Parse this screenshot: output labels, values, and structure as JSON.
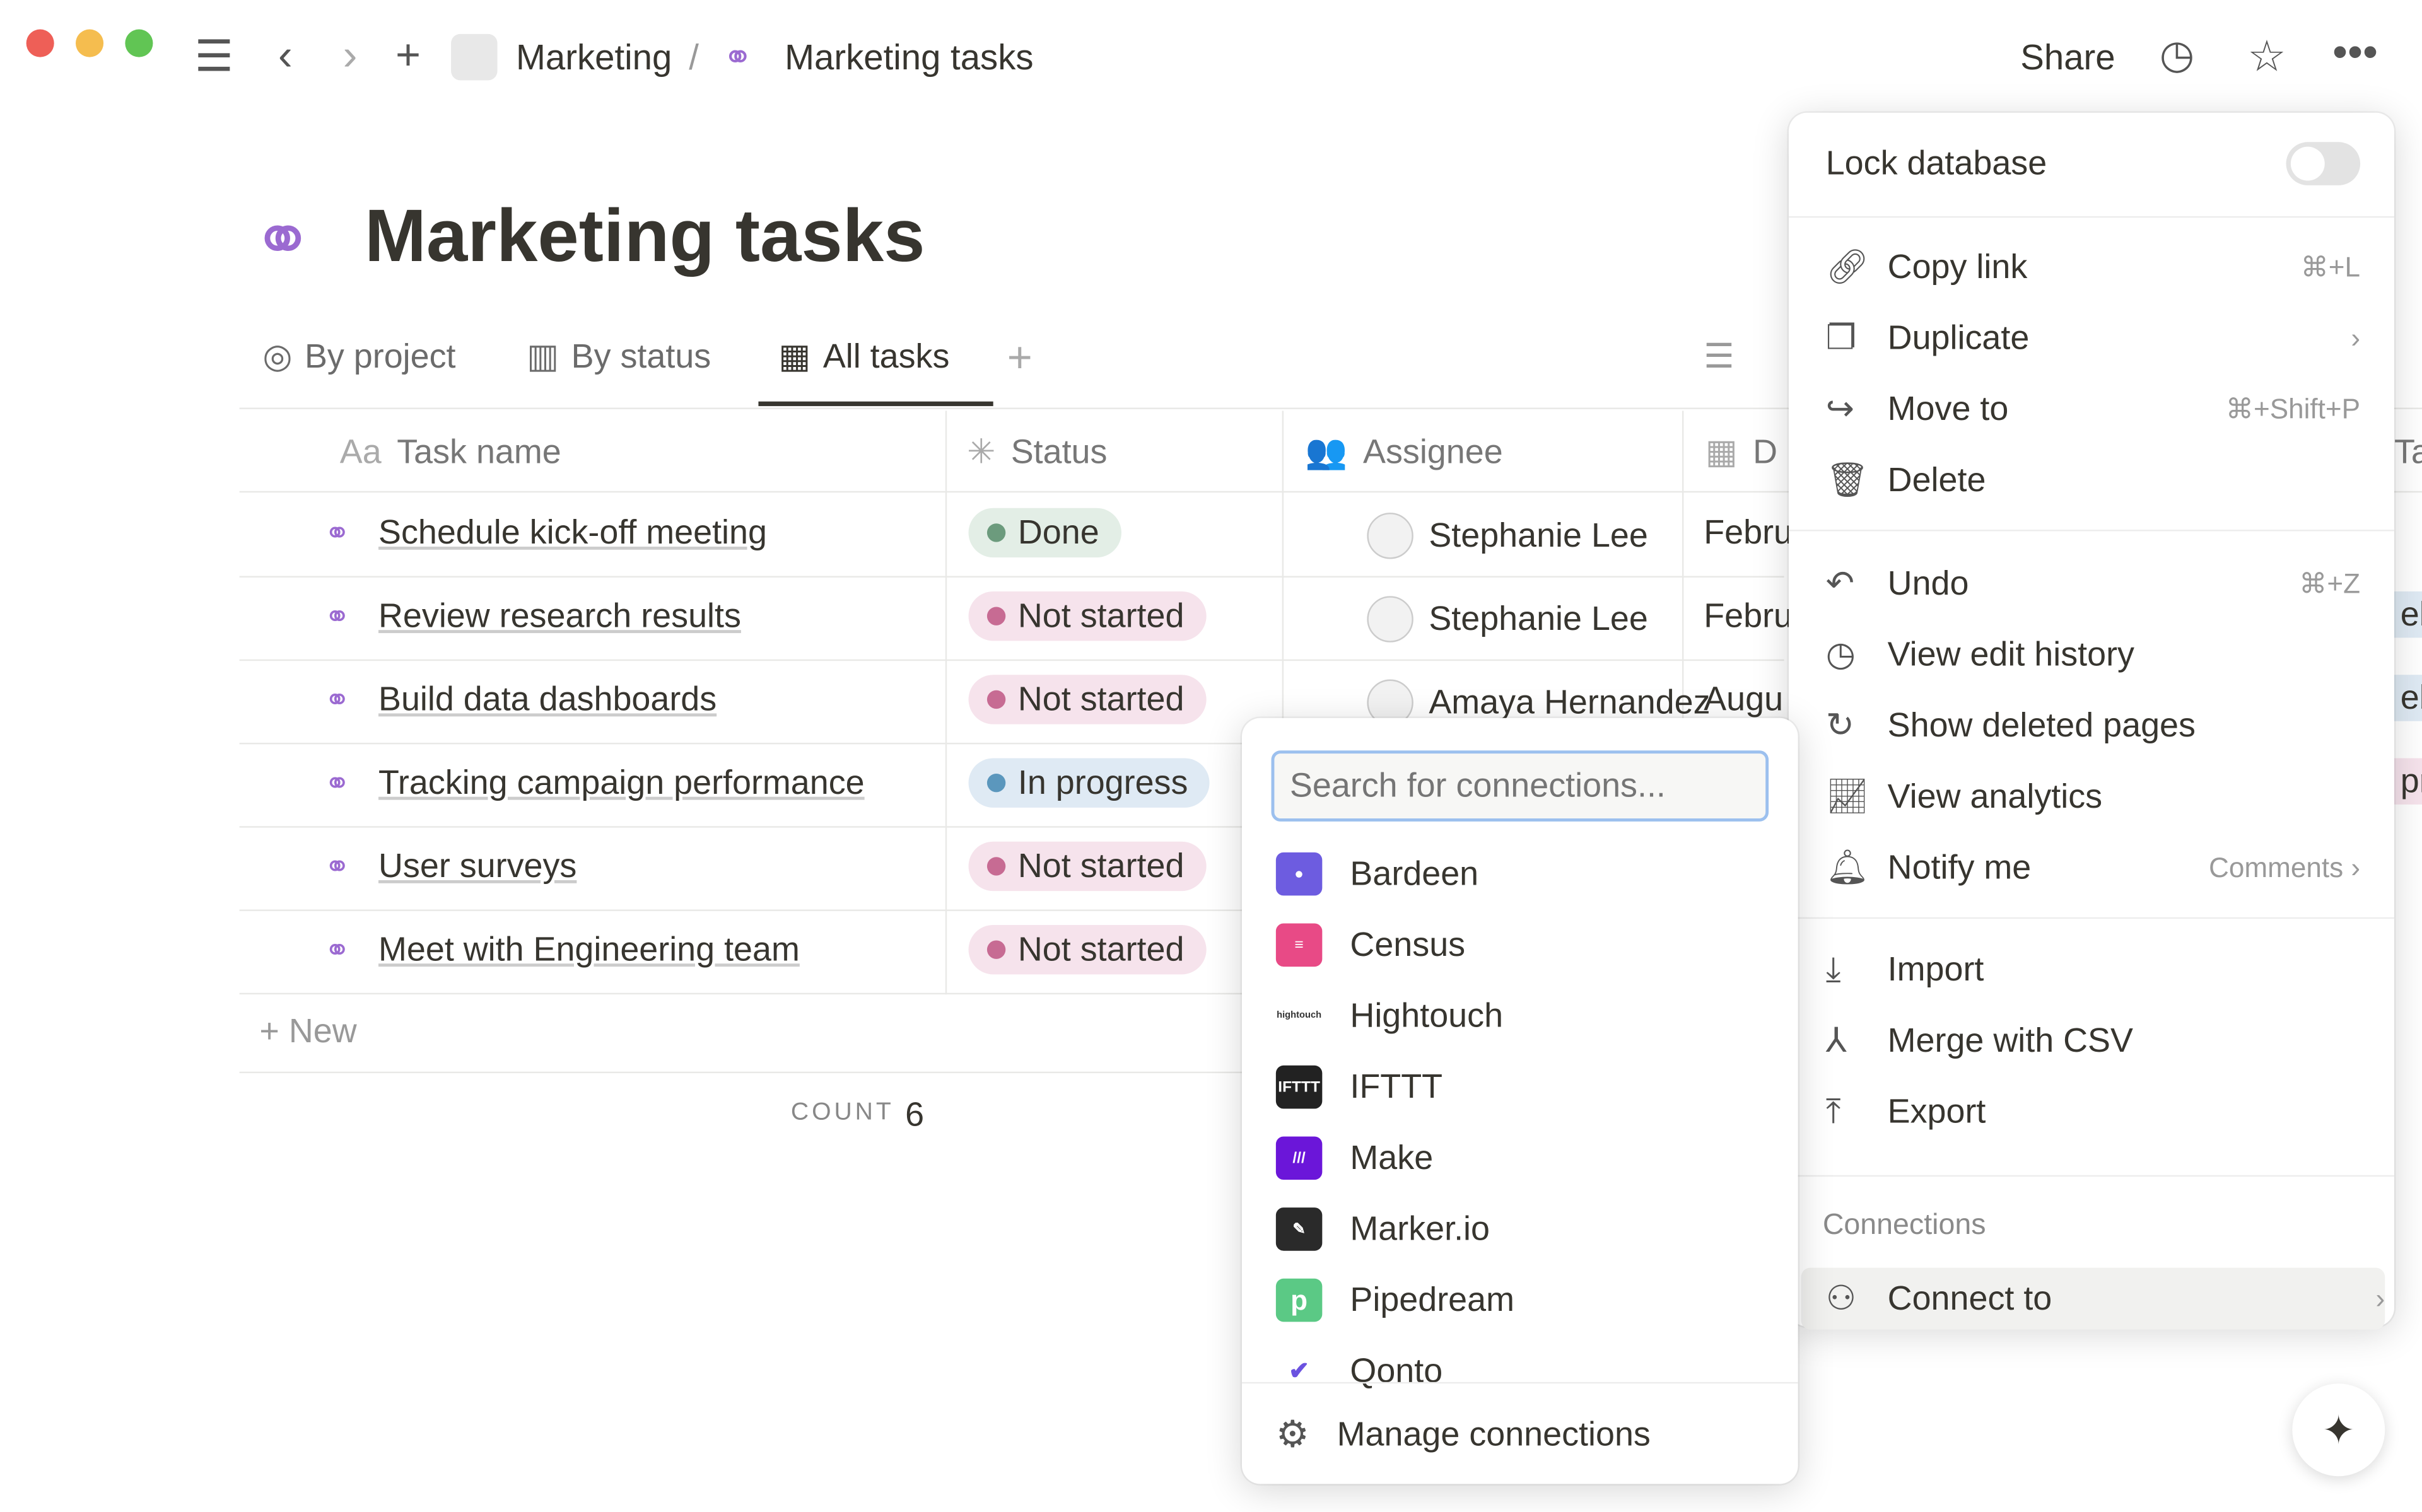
{
  "breadcrumb": {
    "parent": "Marketing",
    "separator": "/",
    "current": "Marketing tasks"
  },
  "topbar": {
    "share": "Share"
  },
  "page": {
    "title": "Marketing tasks"
  },
  "views": [
    {
      "label": "By project",
      "icon": "target-icon"
    },
    {
      "label": "By status",
      "icon": "board-icon"
    },
    {
      "label": "All tasks",
      "icon": "table-icon",
      "active": true
    }
  ],
  "columns": [
    {
      "label": "Task name",
      "icon": "Aa"
    },
    {
      "label": "Status"
    },
    {
      "label": "Assignee"
    },
    {
      "label": "D"
    },
    {
      "label": "Ta"
    }
  ],
  "rows": [
    {
      "name": "Schedule kick-off meeting",
      "status": "Done",
      "assignee": "Stephanie Lee",
      "date": "Febru",
      "tag": ""
    },
    {
      "name": "Review research results",
      "status": "Not started",
      "assignee": "Stephanie Lee",
      "date": "Febru",
      "tag": "eb"
    },
    {
      "name": "Build data dashboards",
      "status": "Not started",
      "assignee": "Amaya Hernandez",
      "date": "Augu",
      "tag": "eb"
    },
    {
      "name": "Tracking campaign performance",
      "status": "In progress",
      "assignee": "",
      "date": "",
      "tag": "pr"
    },
    {
      "name": "User surveys",
      "status": "Not started",
      "assignee": "",
      "date": "",
      "tag": ""
    },
    {
      "name": "Meet with Engineering team",
      "status": "Not started",
      "assignee": "",
      "date": "",
      "tag": ""
    }
  ],
  "table": {
    "new_label": "New",
    "count_label": "COUNT",
    "count": "6"
  },
  "status_colors": {
    "Done": "#6c9b7d",
    "Not started": "#c76b93",
    "In progress": "#5b97bd"
  },
  "menu": {
    "lock_label": "Lock database",
    "lock_on": false,
    "items": [
      {
        "label": "Copy link",
        "shortcut": "⌘+L",
        "icon": "link-icon"
      },
      {
        "label": "Duplicate",
        "shortcut": "›",
        "icon": "duplicate-icon"
      },
      {
        "label": "Move to",
        "shortcut": "⌘+Shift+P",
        "icon": "move-icon"
      },
      {
        "label": "Delete",
        "shortcut": "",
        "icon": "trash-icon"
      },
      {
        "label": "Undo",
        "shortcut": "⌘+Z",
        "icon": "undo-icon"
      },
      {
        "label": "View edit history",
        "shortcut": "",
        "icon": "clock-icon"
      },
      {
        "label": "Show deleted pages",
        "shortcut": "",
        "icon": "restore-icon"
      },
      {
        "label": "View analytics",
        "shortcut": "",
        "icon": "chart-icon"
      },
      {
        "label": "Notify me",
        "shortcut": "Comments ›",
        "icon": "bell-icon"
      },
      {
        "label": "Import",
        "shortcut": "",
        "icon": "import-icon"
      },
      {
        "label": "Merge with CSV",
        "shortcut": "",
        "icon": "merge-icon"
      },
      {
        "label": "Export",
        "shortcut": "",
        "icon": "export-icon"
      }
    ],
    "section": "Connections",
    "connect": "Connect to"
  },
  "connections": {
    "placeholder": "Search for connections...",
    "items": [
      "Bardeen",
      "Census",
      "Hightouch",
      "IFTTT",
      "Make",
      "Marker.io",
      "Pipedream",
      "Qonto"
    ],
    "manage": "Manage connections"
  }
}
